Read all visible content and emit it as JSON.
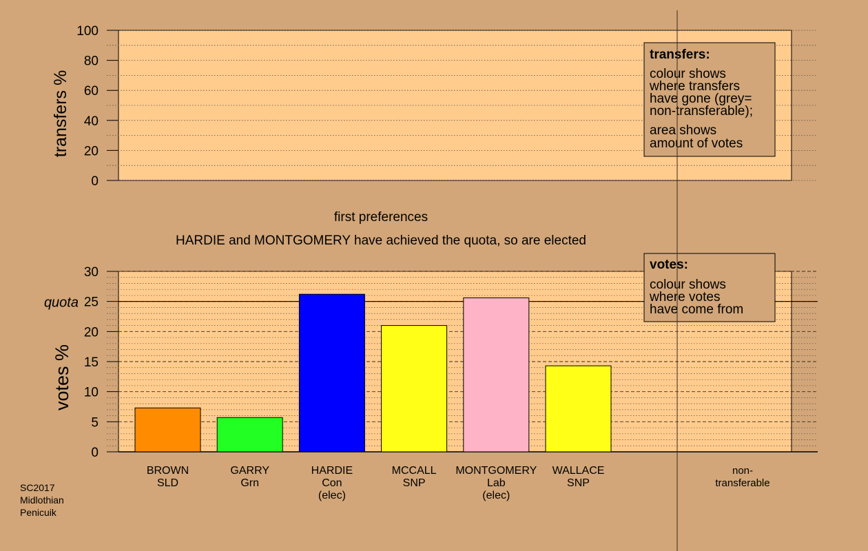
{
  "colors": {
    "background": "#d2a679",
    "plot_fill": "#ffcc8e",
    "legend_fill": "#d2a679"
  },
  "transfers_legend": {
    "title": "transfers:",
    "lines1": [
      "colour shows",
      "where transfers",
      "have gone (grey=",
      "non-transferable);"
    ],
    "lines2": [
      "area shows",
      "amount of votes"
    ]
  },
  "votes_legend": {
    "title": "votes:",
    "lines": [
      "colour shows",
      "where votes",
      "have come from"
    ]
  },
  "stage_title": "first preferences",
  "stage_subtitle": "HARDIE and MONTGOMERY have achieved the quota, so are elected",
  "footer": [
    "SC2017",
    "Midlothian",
    "Penicuik"
  ],
  "nontransferable_label": [
    "non-",
    "transferable"
  ],
  "chart_data": [
    {
      "type": "bar",
      "title": "",
      "ylabel": "transfers %",
      "ylim": [
        0,
        100
      ],
      "yticks": [
        0,
        20,
        40,
        60,
        80,
        100
      ],
      "grid": "dotted",
      "values": []
    },
    {
      "type": "bar",
      "ylabel": "votes %",
      "ylim": [
        0,
        30
      ],
      "yticks": [
        0,
        5,
        10,
        15,
        20,
        25,
        30
      ],
      "quota": 25,
      "quota_label": "quota",
      "grid": "dashed",
      "categories": [
        [
          "BROWN",
          "SLD"
        ],
        [
          "GARRY",
          "Grn"
        ],
        [
          "HARDIE",
          "Con",
          "(elec)"
        ],
        [
          "MCCALL",
          "SNP"
        ],
        [
          "MONTGOMERY",
          "Lab",
          "(elec)"
        ],
        [
          "WALLACE",
          "SNP"
        ]
      ],
      "values": [
        7.3,
        5.7,
        26.2,
        21.0,
        25.6,
        14.3
      ],
      "bar_colors": [
        "#ff8c00",
        "#22ff22",
        "#0000ff",
        "#ffff17",
        "#ffb3c6",
        "#ffff17"
      ]
    }
  ]
}
